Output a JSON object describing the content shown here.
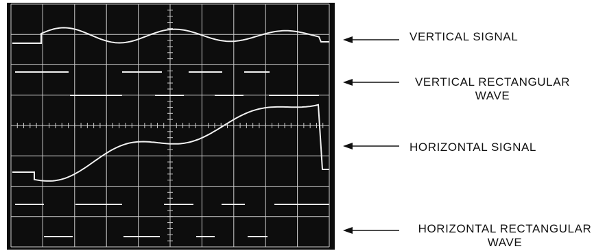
{
  "labels": {
    "vertical_signal": "VERTICAL SIGNAL",
    "vertical_rect_line1": "VERTICAL RECTANGULAR",
    "vertical_rect_line2": "WAVE",
    "horizontal_signal": "HORIZONTAL SIGNAL",
    "horizontal_rect_line1": "HORIZONTAL RECTANGULAR",
    "horizontal_rect_line2": "WAVE"
  },
  "colors": {
    "screen": "#0d0d0d",
    "graticule": "#cfcfcf",
    "trace": "#f2f2f2",
    "label": "#111111"
  },
  "trace_names": [
    "vertical-signal-trace",
    "vertical-rectangular-wave-trace",
    "horizontal-signal-trace",
    "horizontal-rectangular-wave-trace"
  ]
}
